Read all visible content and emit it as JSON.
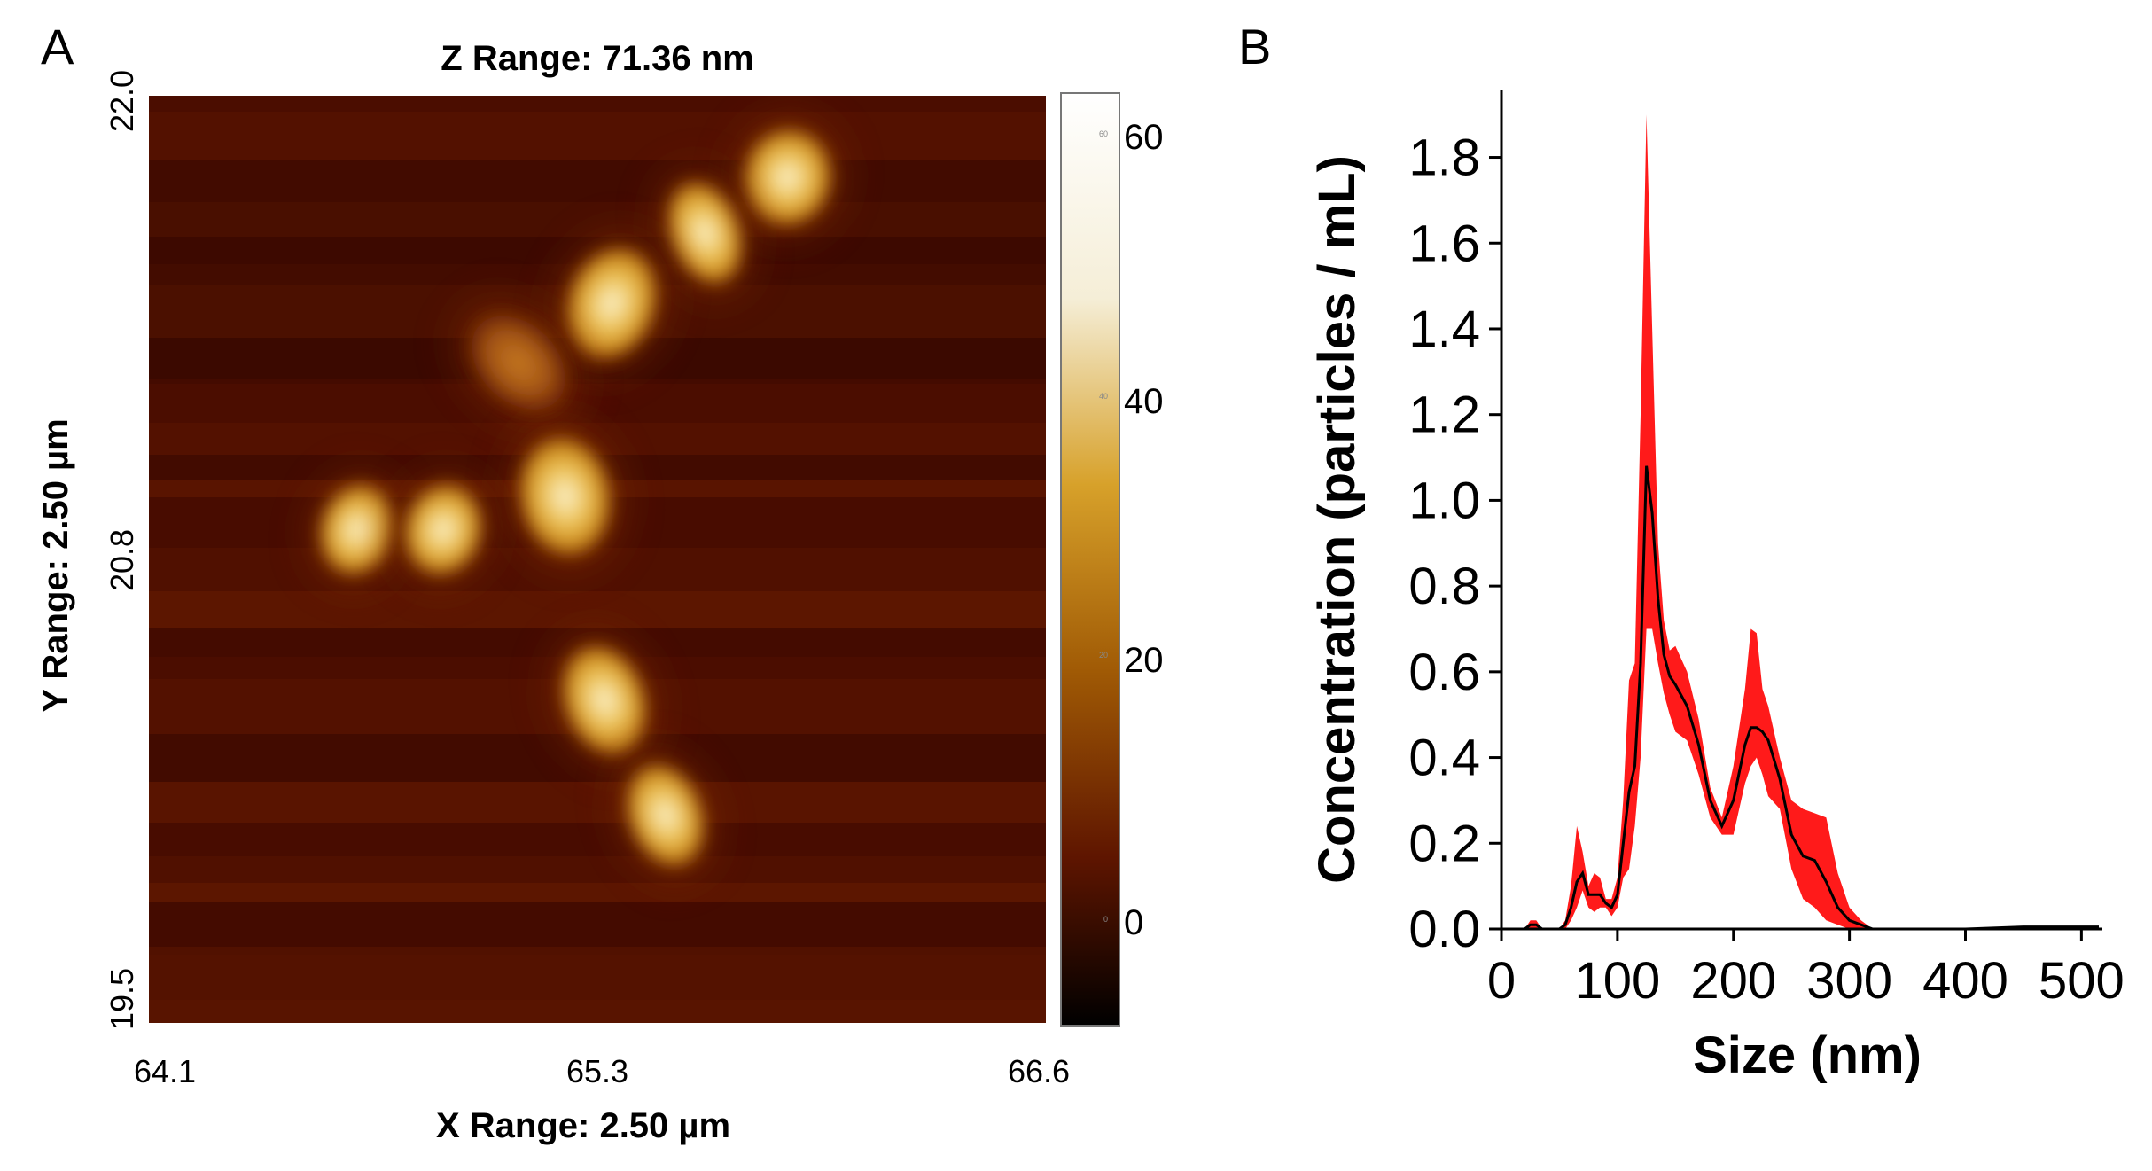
{
  "panels": [
    {
      "letter": "A",
      "type": "afm_height_image",
      "title": "Z Range: 71.36 nm",
      "xlabel": "X Range: 2.50 µm",
      "ylabel": "Y Range: 2.50 µm",
      "x_ticks": [
        "64.1",
        "65.3",
        "66.6"
      ],
      "y_ticks": [
        "22.0",
        "20.8",
        "19.5"
      ],
      "colorbar": {
        "ticks": [
          "60",
          "40",
          "20",
          "0"
        ],
        "colors": [
          "#ffffff",
          "#f5eed7",
          "#d7a12a",
          "#a05a05",
          "#5e1500",
          "#000000"
        ]
      }
    },
    {
      "letter": "B",
      "type": "line_with_error_band",
      "line_color": "#000000",
      "band_color": "#ff1a1a"
    }
  ],
  "chart_data": [
    {
      "type": "heatmap",
      "title": "Z Range: 71.36 nm",
      "xlabel": "X Range: 2.50 µm",
      "ylabel": "Y Range: 2.50 µm",
      "x_range": [
        64.1,
        66.6
      ],
      "y_range": [
        19.5,
        22.0
      ],
      "colorbar_range": [
        -8,
        63
      ],
      "colorbar_ticks": [
        60,
        40,
        20,
        0
      ],
      "particles_center_height": [
        {
          "x": 65.88,
          "y": 21.78,
          "h": 48
        },
        {
          "x": 65.65,
          "y": 21.63,
          "h": 44
        },
        {
          "x": 65.39,
          "y": 21.44,
          "h": 46
        },
        {
          "x": 65.13,
          "y": 21.28,
          "h": 28
        },
        {
          "x": 65.26,
          "y": 20.92,
          "h": 50
        },
        {
          "x": 64.68,
          "y": 20.83,
          "h": 45
        },
        {
          "x": 64.92,
          "y": 20.83,
          "h": 44
        },
        {
          "x": 65.37,
          "y": 20.37,
          "h": 56
        },
        {
          "x": 65.54,
          "y": 20.06,
          "h": 54
        }
      ]
    },
    {
      "type": "line",
      "title": "",
      "xlabel": "Size (nm)",
      "ylabel": "Concentration (particles / mL)",
      "xlim": [
        0,
        515
      ],
      "ylim": [
        0,
        1.95
      ],
      "x_ticks": [
        0,
        100,
        200,
        300,
        400,
        500
      ],
      "y_ticks": [
        0.0,
        0.2,
        0.4,
        0.6,
        0.8,
        1.0,
        1.2,
        1.4,
        1.6,
        1.8
      ],
      "y_tick_labels": [
        "0.0",
        "0.2",
        "0.4",
        "0.6",
        "0.8",
        "1.0",
        "1.2",
        "1.4",
        "1.6",
        "1.8"
      ],
      "x_tick_labels": [
        "0",
        "100",
        "200",
        "300",
        "400",
        "500"
      ],
      "series": [
        {
          "name": "mean",
          "x": [
            0,
            20,
            25,
            30,
            35,
            50,
            55,
            60,
            65,
            70,
            75,
            80,
            85,
            90,
            95,
            100,
            105,
            110,
            115,
            120,
            125,
            130,
            135,
            140,
            145,
            150,
            160,
            170,
            180,
            190,
            200,
            210,
            215,
            220,
            225,
            230,
            240,
            250,
            260,
            270,
            280,
            290,
            300,
            310,
            320,
            330,
            350,
            400,
            450,
            500,
            515
          ],
          "y": [
            0,
            0,
            0.01,
            0.01,
            0,
            0,
            0.01,
            0.05,
            0.11,
            0.13,
            0.08,
            0.08,
            0.08,
            0.06,
            0.05,
            0.08,
            0.2,
            0.32,
            0.38,
            0.62,
            1.08,
            0.97,
            0.77,
            0.64,
            0.59,
            0.57,
            0.52,
            0.43,
            0.3,
            0.24,
            0.3,
            0.43,
            0.47,
            0.47,
            0.46,
            0.44,
            0.35,
            0.22,
            0.17,
            0.16,
            0.11,
            0.05,
            0.02,
            0.01,
            0,
            0,
            0,
            0,
            0.005,
            0.005,
            0.005
          ],
          "upper": [
            0,
            0,
            0.02,
            0.02,
            0,
            0,
            0.02,
            0.1,
            0.24,
            0.18,
            0.1,
            0.13,
            0.12,
            0.07,
            0.07,
            0.12,
            0.3,
            0.58,
            0.62,
            1.2,
            1.9,
            1.4,
            0.9,
            0.72,
            0.65,
            0.66,
            0.6,
            0.49,
            0.33,
            0.26,
            0.38,
            0.56,
            0.7,
            0.69,
            0.56,
            0.52,
            0.4,
            0.3,
            0.28,
            0.27,
            0.26,
            0.13,
            0.05,
            0.02,
            0,
            0,
            0,
            0,
            0.006,
            0.006,
            0.006
          ],
          "lower": [
            0,
            0,
            0,
            0,
            0,
            0,
            0,
            0.02,
            0.05,
            0.09,
            0.05,
            0.04,
            0.05,
            0.05,
            0.03,
            0.05,
            0.12,
            0.14,
            0.24,
            0.4,
            0.7,
            0.7,
            0.62,
            0.55,
            0.5,
            0.46,
            0.44,
            0.36,
            0.26,
            0.22,
            0.22,
            0.34,
            0.38,
            0.4,
            0.36,
            0.31,
            0.28,
            0.14,
            0.07,
            0.05,
            0.02,
            0.01,
            0,
            0,
            0,
            0,
            0,
            0,
            0.004,
            0.004,
            0.004
          ]
        }
      ]
    }
  ]
}
